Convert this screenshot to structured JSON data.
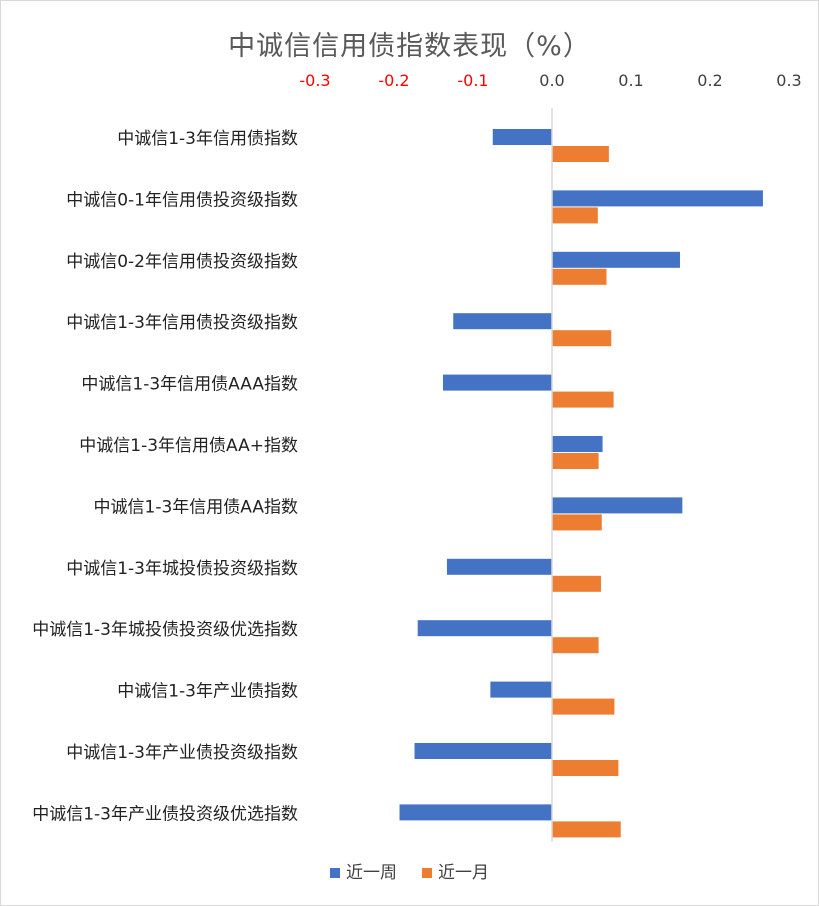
{
  "chart_data": {
    "type": "bar",
    "orientation": "horizontal",
    "title": "中诚信信用债指数表现（%）",
    "xlim": [
      -0.3,
      0.3
    ],
    "x_ticks": [
      "-0.3",
      "-0.2",
      "-0.1",
      "0.0",
      "0.1",
      "0.2",
      "0.3"
    ],
    "x_tick_values": [
      -0.3,
      -0.2,
      -0.1,
      0.0,
      0.1,
      0.2,
      0.3
    ],
    "axis_position": "top",
    "grid": false,
    "legend_position": "bottom",
    "categories": [
      "中诚信1-3年信用债指数",
      "中诚信0-1年信用债投资级指数",
      "中诚信0-2年信用债投资级指数",
      "中诚信1-3年信用债投资级指数",
      "中诚信1-3年信用债AAA指数",
      "中诚信1-3年信用债AA+指数",
      "中诚信1-3年信用债AA指数",
      "中诚信1-3年城投债投资级指数",
      "中诚信1-3年城投债投资级优选指数",
      "中诚信1-3年产业债指数",
      "中诚信1-3年产业债投资级指数",
      "中诚信1-3年产业债投资级优选指数"
    ],
    "series": [
      {
        "name": "近一周",
        "color": "#4472c4",
        "values": [
          -0.075,
          0.267,
          0.162,
          -0.125,
          -0.138,
          0.064,
          0.165,
          -0.133,
          -0.17,
          -0.078,
          -0.174,
          -0.193
        ]
      },
      {
        "name": "近一月",
        "color": "#ed7d31",
        "values": [
          0.072,
          0.058,
          0.069,
          0.075,
          0.078,
          0.059,
          0.063,
          0.062,
          0.059,
          0.079,
          0.084,
          0.087
        ]
      }
    ],
    "colors": {
      "negative_tick": "#ff0000",
      "positive_tick": "#404040",
      "zero_axis": "#d9d9d9"
    }
  }
}
